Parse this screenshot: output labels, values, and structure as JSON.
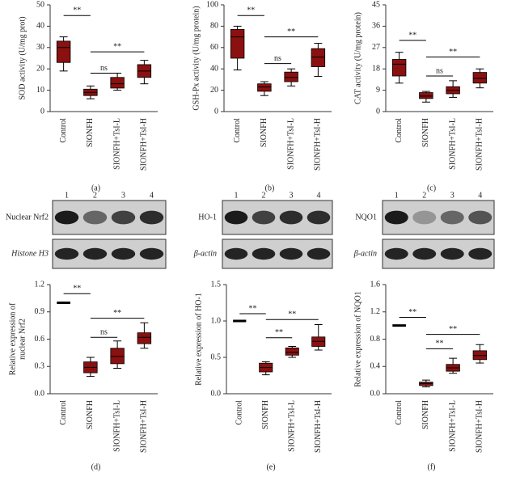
{
  "chart_data": [
    {
      "type": "box",
      "panel_label": "(a)",
      "ylabel": [
        "SOD activity (U/mg prot)"
      ],
      "categories": [
        "Control",
        "SIONFH",
        "SIONFH+TsI-L",
        "SIONFH+TsI-H"
      ],
      "color": "#8b1010",
      "values": [
        {
          "min": 19,
          "q1": 23,
          "median": 30,
          "q3": 33,
          "max": 35
        },
        {
          "min": 6,
          "q1": 7.5,
          "median": 9,
          "q3": 10.5,
          "max": 12
        },
        {
          "min": 10,
          "q1": 11,
          "median": 13,
          "q3": 16,
          "max": 18
        },
        {
          "min": 13,
          "q1": 16,
          "median": 19,
          "q3": 22,
          "max": 24
        }
      ],
      "ylim": [
        0,
        50
      ],
      "yticks": [
        0,
        10,
        20,
        30,
        40,
        50
      ],
      "annotations": [
        {
          "from": 0,
          "to": 1,
          "y": 45,
          "label": "**"
        },
        {
          "from": 1,
          "to": 3,
          "y": 28,
          "label": "**"
        },
        {
          "from": 1,
          "to": 2,
          "y": 18,
          "label": "ns"
        }
      ]
    },
    {
      "type": "box",
      "panel_label": "(b)",
      "ylabel": [
        "GSH-Px activity (U/mg protein)"
      ],
      "categories": [
        "Control",
        "SIONFH",
        "SIONFH+TsI-L",
        "SIONFH+TsI-H"
      ],
      "color": "#8b1010",
      "values": [
        {
          "min": 39,
          "q1": 50,
          "median": 70,
          "q3": 77,
          "max": 80
        },
        {
          "min": 15,
          "q1": 19,
          "median": 23,
          "q3": 26,
          "max": 28
        },
        {
          "min": 24,
          "q1": 28,
          "median": 32,
          "q3": 37,
          "max": 40
        },
        {
          "min": 33,
          "q1": 42,
          "median": 51,
          "q3": 59,
          "max": 64
        }
      ],
      "ylim": [
        0,
        100
      ],
      "yticks": [
        0,
        20,
        40,
        60,
        80,
        100
      ],
      "annotations": [
        {
          "from": 0,
          "to": 1,
          "y": 90,
          "label": "**"
        },
        {
          "from": 1,
          "to": 3,
          "y": 70,
          "label": "**"
        },
        {
          "from": 1,
          "to": 2,
          "y": 45,
          "label": "ns"
        }
      ]
    },
    {
      "type": "box",
      "panel_label": "(c)",
      "ylabel": [
        "CAT activity (U/mg protein)"
      ],
      "categories": [
        "Control",
        "SIONFH",
        "SIONFH+TsI-L",
        "SIONFH+TsI-H"
      ],
      "color": "#8b1010",
      "values": [
        {
          "min": 12,
          "q1": 15,
          "median": 20,
          "q3": 22,
          "max": 25
        },
        {
          "min": 4,
          "q1": 5.5,
          "median": 6.5,
          "q3": 8,
          "max": 8.5
        },
        {
          "min": 6,
          "q1": 7.5,
          "median": 9,
          "q3": 10.5,
          "max": 13
        },
        {
          "min": 10,
          "q1": 12,
          "median": 14,
          "q3": 16.5,
          "max": 18
        }
      ],
      "ylim": [
        0,
        45
      ],
      "yticks": [
        0,
        9,
        18,
        27,
        36,
        45
      ],
      "annotations": [
        {
          "from": 0,
          "to": 1,
          "y": 30,
          "label": "**"
        },
        {
          "from": 1,
          "to": 3,
          "y": 23,
          "label": "**"
        },
        {
          "from": 1,
          "to": 2,
          "y": 15,
          "label": "ns"
        }
      ]
    },
    {
      "type": "box",
      "panel_label": "(d)",
      "ylabel": [
        "Relative expression of",
        "nuclear Nrf2"
      ],
      "categories": [
        "Control",
        "SIONFH",
        "SIONFH+TsI-L",
        "SIONFH+TsI-H"
      ],
      "color": "#8b1010",
      "values": [
        {
          "min": 1,
          "q1": 1,
          "median": 1,
          "q3": 1,
          "max": 1
        },
        {
          "min": 0.19,
          "q1": 0.23,
          "median": 0.29,
          "q3": 0.35,
          "max": 0.4
        },
        {
          "min": 0.28,
          "q1": 0.33,
          "median": 0.41,
          "q3": 0.5,
          "max": 0.58
        },
        {
          "min": 0.5,
          "q1": 0.55,
          "median": 0.62,
          "q3": 0.67,
          "max": 0.78
        }
      ],
      "ylim": [
        0,
        1.2
      ],
      "yticks": [
        {
          "value": 0,
          "label": "0.0"
        },
        0.3,
        0.6,
        0.9,
        1.2
      ],
      "annotations": [
        {
          "from": 0,
          "to": 1,
          "y": 1.1,
          "label": "**"
        },
        {
          "from": 1,
          "to": 3,
          "y": 0.83,
          "label": "**"
        },
        {
          "from": 1,
          "to": 2,
          "y": 0.62,
          "label": "ns"
        }
      ]
    },
    {
      "type": "box",
      "panel_label": "(e)",
      "ylabel": [
        "Relative expression of HO-1"
      ],
      "categories": [
        "Control",
        "SIONFH",
        "SIONFH+TsI-L",
        "SIONFH+TsI-H"
      ],
      "color": "#8b1010",
      "values": [
        {
          "min": 1,
          "q1": 1,
          "median": 1,
          "q3": 1,
          "max": 1
        },
        {
          "min": 0.26,
          "q1": 0.3,
          "median": 0.36,
          "q3": 0.42,
          "max": 0.44
        },
        {
          "min": 0.5,
          "q1": 0.53,
          "median": 0.57,
          "q3": 0.63,
          "max": 0.65
        },
        {
          "min": 0.6,
          "q1": 0.65,
          "median": 0.72,
          "q3": 0.78,
          "max": 0.95
        }
      ],
      "ylim": [
        0,
        1.5
      ],
      "yticks": [
        {
          "value": 0,
          "label": "0.0"
        },
        0.5,
        {
          "value": 1,
          "label": "1.0"
        },
        1.5
      ],
      "annotations": [
        {
          "from": 0,
          "to": 1,
          "y": 1.1,
          "label": "**"
        },
        {
          "from": 1,
          "to": 3,
          "y": 1.02,
          "label": "**"
        },
        {
          "from": 1,
          "to": 2,
          "y": 0.77,
          "label": "**"
        }
      ]
    },
    {
      "type": "box",
      "panel_label": "(f)",
      "ylabel": [
        "Relative expression of NQO1"
      ],
      "categories": [
        "Control",
        "SIONFH",
        "SIONFH+TsI-L",
        "SIONFH+TsI-H"
      ],
      "color": "#8b1010",
      "values": [
        {
          "min": 1,
          "q1": 1,
          "median": 1,
          "q3": 1,
          "max": 1
        },
        {
          "min": 0.1,
          "q1": 0.12,
          "median": 0.15,
          "q3": 0.17,
          "max": 0.2
        },
        {
          "min": 0.3,
          "q1": 0.33,
          "median": 0.38,
          "q3": 0.43,
          "max": 0.52
        },
        {
          "min": 0.45,
          "q1": 0.5,
          "median": 0.56,
          "q3": 0.63,
          "max": 0.72
        }
      ],
      "ylim": [
        0,
        1.6
      ],
      "yticks": [
        {
          "value": 0,
          "label": "0.0"
        },
        0.4,
        0.8,
        1.2,
        1.6
      ],
      "annotations": [
        {
          "from": 0,
          "to": 1,
          "y": 1.12,
          "label": "**"
        },
        {
          "from": 1,
          "to": 3,
          "y": 0.87,
          "label": "**"
        },
        {
          "from": 1,
          "to": 2,
          "y": 0.66,
          "label": "**"
        }
      ]
    }
  ],
  "blots": [
    {
      "lanes": [
        "1",
        "2",
        "3",
        "4"
      ],
      "rows": [
        "Nuclear Nrf2",
        "Histone H3"
      ]
    },
    {
      "lanes": [
        "1",
        "2",
        "3",
        "4"
      ],
      "rows": [
        "HO-1",
        "β-actin"
      ]
    },
    {
      "lanes": [
        "1",
        "2",
        "3",
        "4"
      ],
      "rows": [
        "NQO1",
        "β-actin"
      ]
    }
  ]
}
